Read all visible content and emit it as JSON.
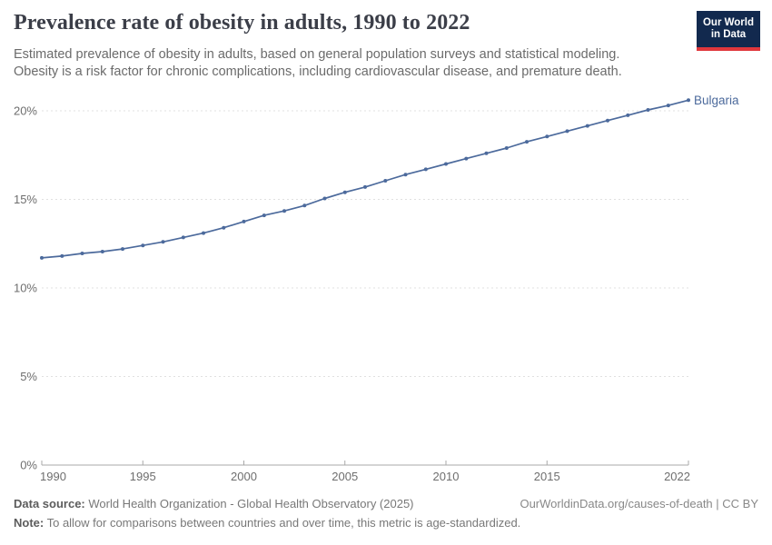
{
  "header": {
    "title": "Prevalence rate of obesity in adults, 1990 to 2022",
    "subtitle_line1": "Estimated prevalence of obesity in adults, based on general population surveys and statistical modeling.",
    "subtitle_line2": "Obesity is a risk factor for chronic complications, including cardiovascular disease, and premature death.",
    "logo": {
      "line1": "Our World",
      "line2": "in Data",
      "bg_color": "#12294e",
      "accent_color": "#e0373c"
    }
  },
  "chart_data": {
    "type": "line",
    "title": "Prevalence rate of obesity in adults, 1990 to 2022",
    "xlabel": "",
    "ylabel": "",
    "unit": "%",
    "ylim": [
      0,
      20
    ],
    "yticks": [
      0,
      5,
      10,
      15,
      20
    ],
    "xticks": [
      1990,
      1995,
      2000,
      2005,
      2010,
      2015,
      2022
    ],
    "grid": "horizontal-dashed",
    "legend_position": "end-of-line-label",
    "x": [
      1990,
      1991,
      1992,
      1993,
      1994,
      1995,
      1996,
      1997,
      1998,
      1999,
      2000,
      2001,
      2002,
      2003,
      2004,
      2005,
      2006,
      2007,
      2008,
      2009,
      2010,
      2011,
      2012,
      2013,
      2014,
      2015,
      2016,
      2017,
      2018,
      2019,
      2020,
      2021,
      2022
    ],
    "series": [
      {
        "name": "Bulgaria",
        "color": "#4c6a9c",
        "values": [
          11.7,
          11.8,
          11.95,
          12.05,
          12.2,
          12.4,
          12.6,
          12.85,
          13.1,
          13.4,
          13.75,
          14.1,
          14.35,
          14.65,
          15.05,
          15.4,
          15.7,
          16.05,
          16.4,
          16.7,
          17.0,
          17.3,
          17.6,
          17.9,
          18.25,
          18.55,
          18.85,
          19.15,
          19.45,
          19.75,
          20.05,
          20.3,
          20.6
        ]
      }
    ],
    "style": {
      "grid_color": "#e0e0e0",
      "axis_color": "#a8a8a8",
      "tick_label_color": "#6e6e6e"
    }
  },
  "footer": {
    "data_source_label": "Data source:",
    "data_source_text": " World Health Organization - Global Health Observatory (2025)",
    "attribution": "OurWorldinData.org/causes-of-death | CC BY",
    "note_label": "Note:",
    "note_text": " To allow for comparisons between countries and over time, this metric is age-standardized."
  }
}
